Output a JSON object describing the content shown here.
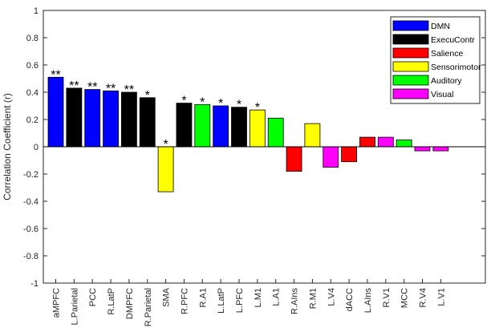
{
  "chart_data": {
    "type": "bar",
    "ylabel": "Correlation Coefficient (r)",
    "ylim": [
      -1,
      1
    ],
    "yticks": [
      -1,
      -0.8,
      -0.6,
      -0.4,
      -0.2,
      0,
      0.2,
      0.4,
      0.6,
      0.8,
      1
    ],
    "ytick_labels": [
      "-1",
      "-0.8",
      "-0.6",
      "-0.4",
      "-0.2",
      "0",
      "0.2",
      "0.4",
      "0.6",
      "0.8",
      "1"
    ],
    "legend_position": "top-right",
    "grid": false,
    "categories": [
      "aMPFC",
      "L.Parietal",
      "PCC",
      "R.LatP",
      "DMPFC",
      "R.Parietal",
      "SMA",
      "R.PFC",
      "R.A1",
      "L.LatP",
      "L.PFC",
      "L.M1",
      "L.A1",
      "R.AIns",
      "R.M1",
      "L.V4",
      "dACC",
      "L.AIns",
      "R.V1",
      "MCC",
      "R.V4",
      "L.V1"
    ],
    "values": [
      0.51,
      0.43,
      0.42,
      0.41,
      0.4,
      0.36,
      -0.33,
      0.32,
      0.31,
      0.3,
      0.29,
      0.27,
      0.21,
      -0.18,
      0.17,
      -0.15,
      -0.11,
      0.07,
      0.07,
      0.05,
      -0.03,
      -0.03
    ],
    "groups": [
      "DMN",
      "ExecuContr",
      "DMN",
      "DMN",
      "ExecuContr",
      "ExecuContr",
      "Sensorimotor",
      "ExecuContr",
      "Auditory",
      "DMN",
      "ExecuContr",
      "Sensorimotor",
      "Auditory",
      "Salience",
      "Sensorimotor",
      "Visual",
      "Salience",
      "Salience",
      "Visual",
      "Auditory",
      "Visual",
      "Visual"
    ],
    "significance": [
      "**",
      "**",
      "**",
      "**",
      "**",
      "*",
      "*",
      "*",
      "*",
      "*",
      "*",
      "*",
      "",
      "",
      "",
      "",
      "",
      "",
      "",
      "",
      "",
      ""
    ],
    "legend": [
      {
        "name": "DMN",
        "color": "#0000ff"
      },
      {
        "name": "ExecuContr",
        "color": "#000000"
      },
      {
        "name": "Salience",
        "color": "#ff0000"
      },
      {
        "name": "Sensorimotor",
        "color": "#ffff00"
      },
      {
        "name": "Auditory",
        "color": "#00ff00"
      },
      {
        "name": "Visual",
        "color": "#ff00ff"
      }
    ]
  }
}
